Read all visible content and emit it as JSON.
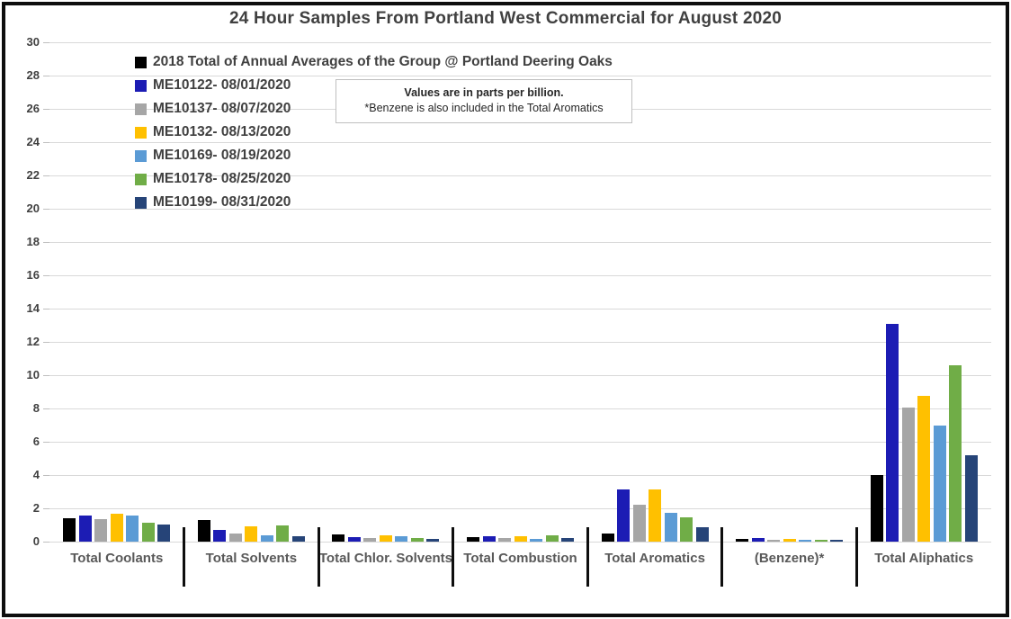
{
  "title": "24 Hour Samples From Portland West Commercial for August 2020",
  "note": {
    "line1": "Values are in parts per billion.",
    "line2": "*Benzene is also included in the Total Aromatics"
  },
  "chart_data": {
    "type": "bar",
    "title": "24 Hour Samples From Portland West Commercial for August 2020",
    "categories": [
      "Total Coolants",
      "Total Solvents",
      "Total Chlor. Solvents",
      "Total Combustion",
      "Total Aromatics",
      "(Benzene)*",
      "Total Aliphatics"
    ],
    "series": [
      {
        "name": "2018 Total of Annual Averages of the Group @ Portland Deering Oaks",
        "color": "#000000",
        "values": [
          1.4,
          1.3,
          0.45,
          0.25,
          0.5,
          0.15,
          4.0
        ]
      },
      {
        "name": "ME10122- 08/01/2020",
        "color": "#1C1CB4",
        "values": [
          1.55,
          0.7,
          0.25,
          0.35,
          3.15,
          0.2,
          13.1
        ]
      },
      {
        "name": "ME10137- 08/07/2020",
        "color": "#A6A6A6",
        "values": [
          1.35,
          0.5,
          0.2,
          0.2,
          2.2,
          0.1,
          8.05
        ]
      },
      {
        "name": "ME10132- 08/13/2020",
        "color": "#FFC000",
        "values": [
          1.7,
          0.9,
          0.4,
          0.35,
          3.15,
          0.15,
          8.75
        ]
      },
      {
        "name": "ME10169- 08/19/2020",
        "color": "#5B9BD5",
        "values": [
          1.55,
          0.4,
          0.3,
          0.15,
          1.75,
          0.1,
          7.0
        ]
      },
      {
        "name": "ME10178- 08/25/2020",
        "color": "#70AD47",
        "values": [
          1.15,
          1.0,
          0.2,
          0.4,
          1.45,
          0.1,
          10.6
        ]
      },
      {
        "name": "ME10199- 08/31/2020",
        "color": "#264478",
        "values": [
          1.05,
          0.3,
          0.15,
          0.2,
          0.85,
          0.1,
          5.2
        ]
      }
    ],
    "xlabel": "",
    "ylabel": "",
    "ylim": [
      0,
      30
    ],
    "ytick_step": 2,
    "grid": true,
    "legend_position": "top-left",
    "units": "parts per billion",
    "gridline_color": "#D9D9D9"
  }
}
